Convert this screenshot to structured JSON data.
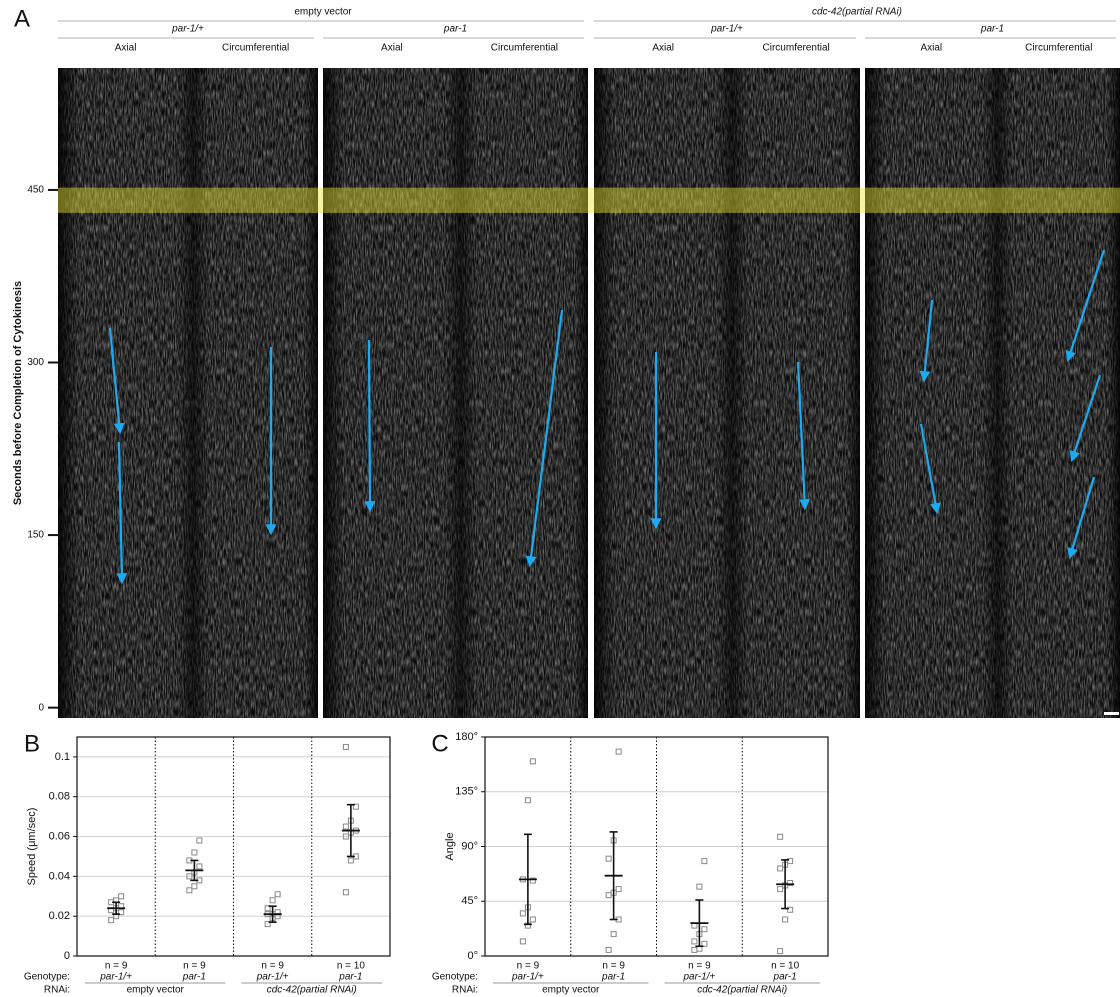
{
  "panel_a": {
    "label": "A",
    "rnai": [
      "empty vector",
      "cdc-42(partial RNAi)"
    ],
    "genotypes": [
      "par-1/+",
      "par-1",
      "par-1/+",
      "par-1"
    ],
    "directions": [
      "Axial",
      "Circumferential",
      "Axial",
      "Circumferential",
      "Axial",
      "Circumferential",
      "Axial",
      "Circumferential"
    ],
    "y_label": "Seconds before Completion of Cytokinesis",
    "ylim": [
      -9,
      556
    ],
    "yticks": [
      0,
      150,
      300,
      450
    ],
    "highlight_band": [
      430,
      452
    ],
    "highlight_color": "#e6e632"
  },
  "chart_data": [
    {
      "type": "dot_plot",
      "panel": "B",
      "y_label": "Speed (μm/sec)",
      "categories": [
        "par-1/+",
        "par-1",
        "par-1/+",
        "par-1"
      ],
      "n_labels": [
        "n = 9",
        "n = 9",
        "n = 9",
        "n = 10"
      ],
      "group_label": "Genotype:",
      "rnai_label": "RNAi:",
      "rnai_groups": [
        "empty vector",
        "cdc-42(partial RNAi)"
      ],
      "points": [
        [
          0.018,
          0.02,
          0.022,
          0.023,
          0.024,
          0.025,
          0.027,
          0.028,
          0.03
        ],
        [
          0.033,
          0.035,
          0.038,
          0.04,
          0.042,
          0.045,
          0.048,
          0.052,
          0.058
        ],
        [
          0.016,
          0.019,
          0.02,
          0.021,
          0.021,
          0.022,
          0.024,
          0.028,
          0.031
        ],
        [
          0.032,
          0.048,
          0.05,
          0.06,
          0.062,
          0.063,
          0.065,
          0.068,
          0.075,
          0.105
        ]
      ],
      "means": [
        0.024,
        0.043,
        0.021,
        0.063
      ],
      "errors": [
        0.003,
        0.005,
        0.004,
        0.013
      ],
      "ylim": [
        0,
        0.11
      ],
      "yticks": [
        0,
        0.02,
        0.04,
        0.06,
        0.08,
        0.1
      ],
      "grid": true,
      "color": "#888888"
    },
    {
      "type": "dot_plot",
      "panel": "C",
      "y_label": "Angle",
      "categories": [
        "par-1/+",
        "par-1",
        "par-1/+",
        "par-1"
      ],
      "n_labels": [
        "n = 9",
        "n = 9",
        "n = 9",
        "n = 10"
      ],
      "group_label": "Genotype:",
      "rnai_label": "RNAi:",
      "rnai_groups": [
        "empty vector",
        "cdc-42(partial RNAi)"
      ],
      "points": [
        [
          12,
          25,
          30,
          35,
          40,
          62,
          63,
          128,
          160
        ],
        [
          5,
          18,
          30,
          50,
          52,
          55,
          80,
          95,
          168
        ],
        [
          5,
          6,
          10,
          12,
          18,
          22,
          25,
          57,
          78
        ],
        [
          4,
          30,
          38,
          55,
          58,
          60,
          72,
          75,
          78,
          98
        ]
      ],
      "means": [
        63,
        66,
        27,
        59
      ],
      "errors": [
        37,
        36,
        19,
        20
      ],
      "ylim": [
        0,
        180
      ],
      "yticks": [
        {
          "value": 0,
          "label": "0°"
        },
        {
          "value": 45,
          "label": "45°"
        },
        {
          "value": 90,
          "label": "90°"
        },
        {
          "value": 135,
          "label": "135°"
        },
        {
          "value": 180,
          "label": "180°"
        }
      ],
      "grid": true,
      "color": "#888888"
    }
  ]
}
